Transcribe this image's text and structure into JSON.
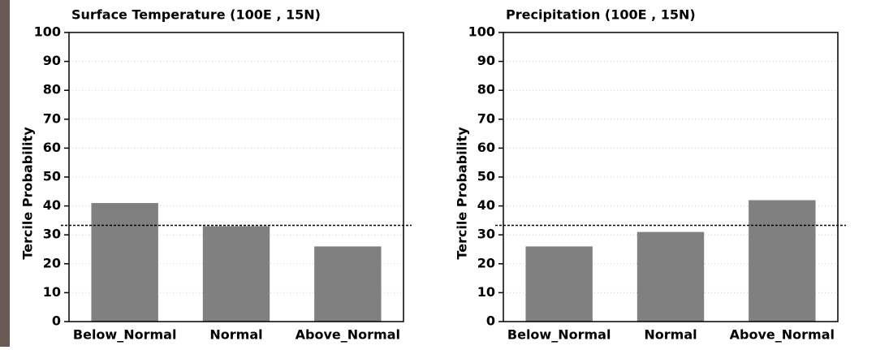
{
  "chart_data": [
    {
      "type": "bar",
      "title": "Surface Temperature (100E , 15N)",
      "y_label": "Tercile Probability",
      "categories": [
        "Below_Normal",
        "Normal",
        "Above_Normal"
      ],
      "values": [
        41,
        33,
        26
      ],
      "color": "#808080",
      "ylim": [
        0,
        100
      ],
      "yticks": [
        0,
        10,
        20,
        30,
        40,
        50,
        60,
        70,
        80,
        90,
        100
      ],
      "grid": true,
      "reference_line": 33.3
    },
    {
      "type": "bar",
      "title": "Precipitation (100E , 15N)",
      "y_label": "Tercile Probability",
      "categories": [
        "Below_Normal",
        "Normal",
        "Above_Normal"
      ],
      "values": [
        26,
        31,
        42
      ],
      "color": "#808080",
      "ylim": [
        0,
        100
      ],
      "yticks": [
        0,
        10,
        20,
        30,
        40,
        50,
        60,
        70,
        80,
        90,
        100
      ],
      "grid": true,
      "reference_line": 33.3
    }
  ]
}
